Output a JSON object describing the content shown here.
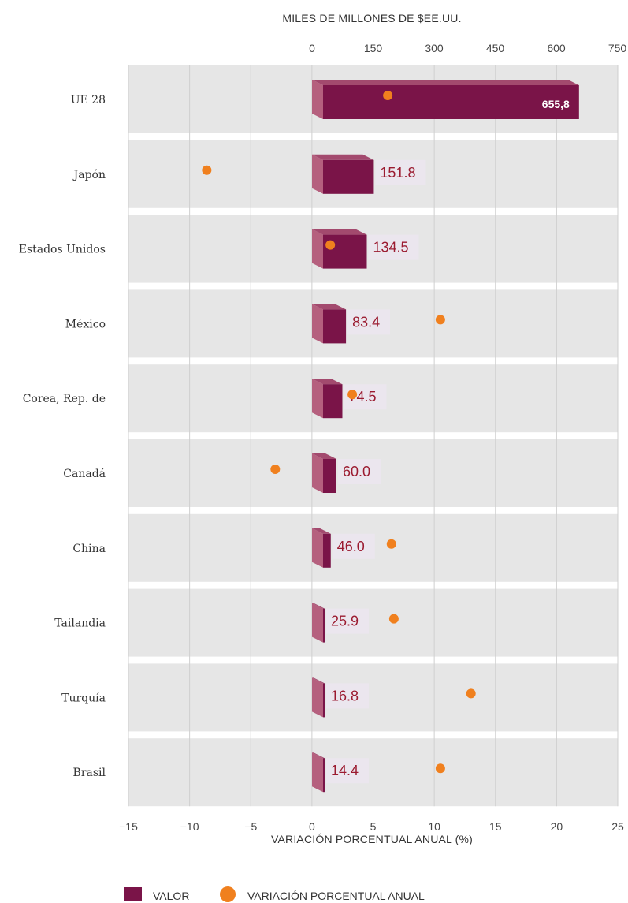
{
  "chart_data": {
    "type": "bar",
    "title": "",
    "top_axis": {
      "label": "MILES DE MILLONES DE $EE.UU.",
      "ticks": [
        "0",
        "150",
        "300",
        "450",
        "600",
        "750"
      ],
      "range": [
        0,
        750
      ]
    },
    "bottom_axis": {
      "label": "VARIACIÓN PORCENTUAL ANUAL (%)",
      "ticks": [
        "−15",
        "−10",
        "−5",
        "0",
        "5",
        "10",
        "15",
        "20",
        "25"
      ],
      "range": [
        -15,
        25
      ]
    },
    "categories": [
      "UE 28",
      "Japón",
      "Estados Unidos",
      "México",
      "Corea, Rep. de",
      "Canadá",
      "China",
      "Tailandia",
      "Turquía",
      "Brasil"
    ],
    "series": [
      {
        "name": "VALOR",
        "axis": "top",
        "color": "#7a1448",
        "values": [
          655.8,
          151.8,
          134.5,
          83.4,
          74.5,
          60.0,
          46.0,
          25.9,
          16.8,
          14.4
        ],
        "labels": [
          "655,8",
          "151.8",
          "134.5",
          "83.4",
          "74.5",
          "60.0",
          "46.0",
          "25.9",
          "16.8",
          "14.4"
        ]
      },
      {
        "name": "VARIACIÓN PORCENTUAL ANUAL",
        "axis": "bottom",
        "color": "#f0801e",
        "values": [
          6.2,
          -8.6,
          1.5,
          10.5,
          3.3,
          -3.0,
          6.5,
          6.7,
          13.0,
          10.5
        ]
      }
    ],
    "grid": true,
    "legend": "bottom-left"
  },
  "legend": {
    "valor": "VALOR",
    "variacion": "VARIACIÓN PORCENTUAL ANUAL"
  }
}
